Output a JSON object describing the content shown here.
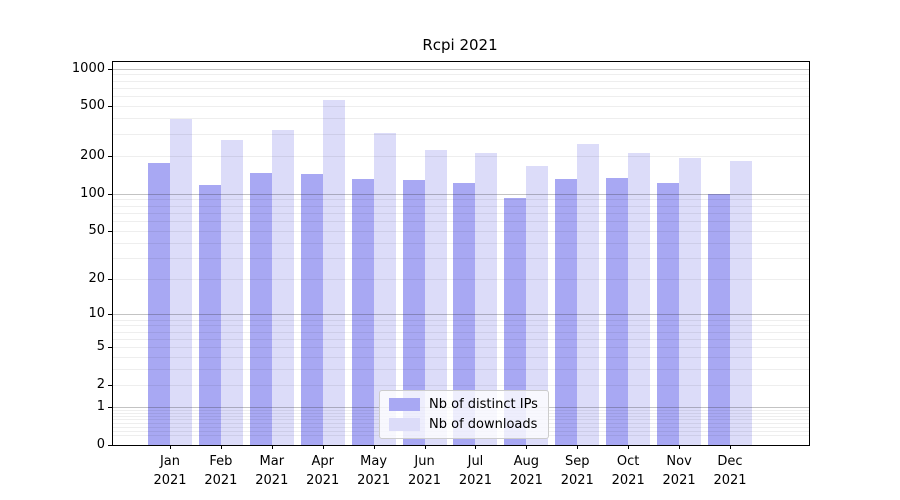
{
  "title": "Rcpi 2021",
  "chart_data": {
    "type": "bar",
    "scale": "log1p",
    "title": "Rcpi 2021",
    "categories": [
      "Jan 2021",
      "Feb 2021",
      "Mar 2021",
      "Apr 2021",
      "May 2021",
      "Jun 2021",
      "Jul 2021",
      "Aug 2021",
      "Sep 2021",
      "Oct 2021",
      "Nov 2021",
      "Dec 2021"
    ],
    "series": [
      {
        "name": "Nb of distinct IPs",
        "color": "#a8a8f3",
        "values": [
          177,
          117,
          147,
          143,
          132,
          128,
          122,
          92,
          130,
          134,
          121,
          100
        ]
      },
      {
        "name": "Nb of downloads",
        "color": "#dcdcf9",
        "values": [
          395,
          270,
          323,
          567,
          304,
          223,
          212,
          166,
          248,
          212,
          192,
          182
        ]
      }
    ],
    "y_ticks": [
      1000,
      500,
      200,
      100,
      50,
      20,
      10,
      5,
      2,
      1,
      0
    ],
    "ylim": [
      0,
      1130
    ],
    "grid": true,
    "legend_position": "lower center",
    "colors": {
      "major_grid": "#bfbfbf",
      "minor_grid": "#ececec",
      "spine": "#000000",
      "text": "#000000"
    }
  }
}
